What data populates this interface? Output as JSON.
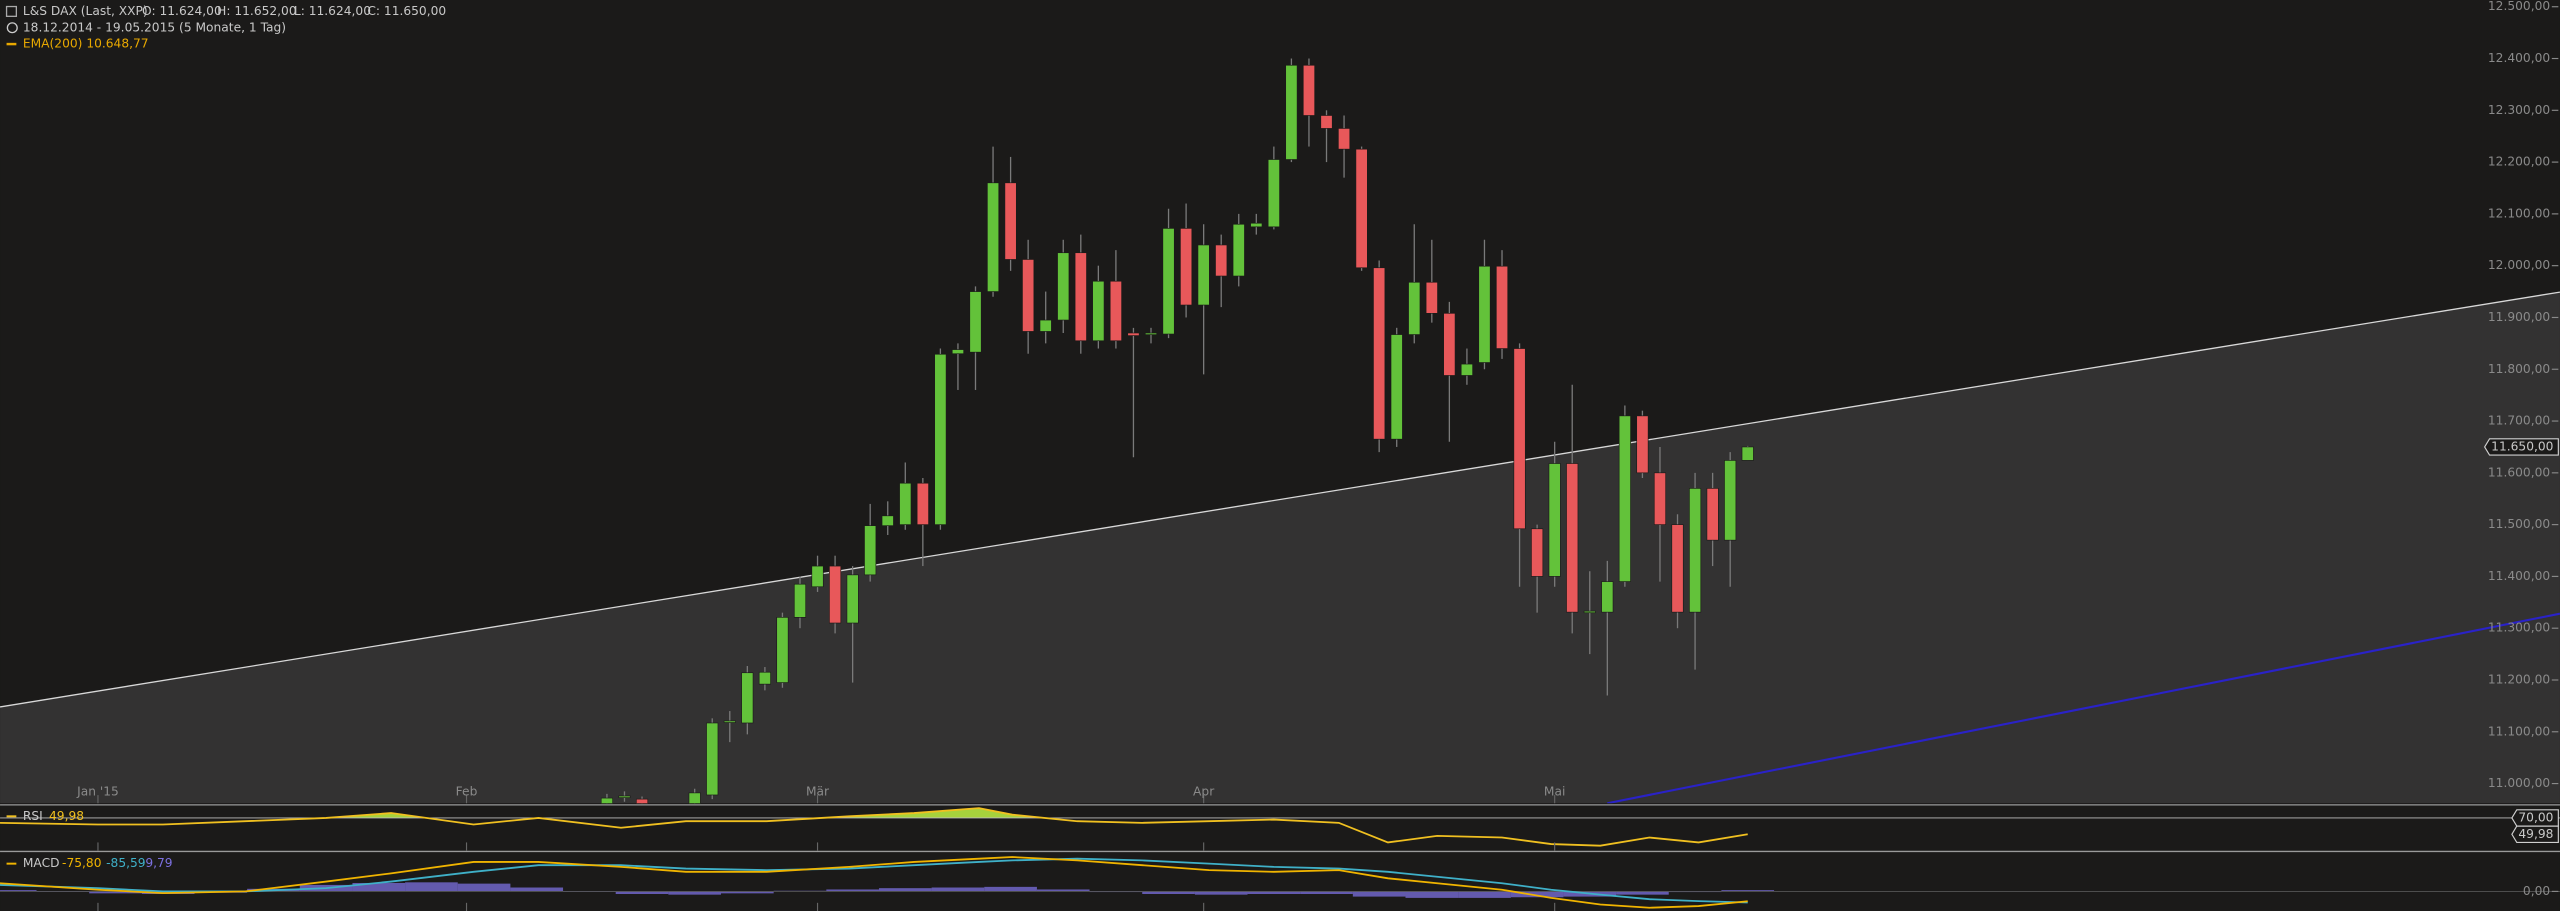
{
  "chart_data": [
    {
      "type": "candlestick",
      "title": "L&S DAX (Last, XXP)",
      "ohlc_labels": [
        "O: 11.624,00",
        "H: 11.652,00",
        "L: 11.624,00",
        "C: 11.650,00"
      ],
      "subtitle": "18.12.2014 - 19.05.2015 (5 Monate, 1 Tag)",
      "indicator_label": "EMA(200)  10.648,77",
      "indicator_color": "#e8a800",
      "x": [
        29,
        30,
        31,
        34,
        35,
        36,
        37,
        38,
        39,
        40,
        41,
        42,
        43,
        44,
        45,
        46,
        47,
        48,
        49,
        50,
        51,
        52,
        53,
        54,
        55,
        56,
        57,
        58,
        59,
        60,
        61,
        62,
        63,
        64,
        65,
        66,
        67,
        68,
        69,
        70,
        71,
        72,
        73,
        74,
        75,
        76,
        77,
        78,
        79,
        80,
        81,
        82,
        83,
        84,
        85,
        86,
        87,
        88,
        89,
        90,
        91,
        92,
        93,
        94
      ],
      "open": [
        10950,
        10974,
        10970,
        10940,
        10978,
        11118,
        11117,
        11192,
        11195,
        11321,
        11380,
        11420,
        11310,
        11403,
        11498,
        11500,
        11580,
        11500,
        11830,
        11833,
        11950,
        12160,
        12012,
        11873,
        11895,
        12025,
        11855,
        11970,
        11870,
        11867,
        11868,
        12072,
        11924,
        12040,
        11980,
        12075,
        12075,
        12205,
        12387,
        12290,
        12265,
        12225,
        11996,
        11665,
        11867,
        11968,
        11908,
        11788,
        11813,
        11999,
        11840,
        11492,
        11400,
        11618,
        11331,
        11331,
        11390,
        11710,
        11600,
        11500,
        11331,
        11570,
        11470,
        11624
      ],
      "high": [
        10980,
        10985,
        10975,
        10990,
        11126,
        11140,
        11227,
        11225,
        11330,
        11400,
        11440,
        11440,
        11420,
        11540,
        11545,
        11620,
        11590,
        11840,
        11850,
        11960,
        12230,
        12210,
        12050,
        11950,
        12050,
        12060,
        12000,
        12030,
        11880,
        11880,
        12110,
        12120,
        12080,
        12060,
        12100,
        12100,
        12230,
        12400,
        12400,
        12300,
        12290,
        12230,
        12010,
        11880,
        12080,
        12050,
        11930,
        11840,
        12050,
        12030,
        11850,
        11500,
        11660,
        11770,
        11410,
        11430,
        11730,
        11720,
        11650,
        11520,
        11600,
        11600,
        11640,
        11652
      ],
      "low": [
        10930,
        10965,
        10940,
        10920,
        10970,
        11080,
        11095,
        11180,
        11185,
        11300,
        11370,
        11290,
        11195,
        11390,
        11480,
        11490,
        11420,
        11490,
        11760,
        11760,
        11940,
        11990,
        11830,
        11850,
        11870,
        11830,
        11840,
        11840,
        11630,
        11850,
        11860,
        11900,
        11790,
        11920,
        11960,
        12060,
        12070,
        12200,
        12230,
        12200,
        12170,
        11990,
        11640,
        11650,
        11850,
        11890,
        11660,
        11770,
        11800,
        11820,
        11380,
        11330,
        11380,
        11290,
        11250,
        11170,
        11380,
        11590,
        11390,
        11300,
        11220,
        11420,
        11380,
        11624
      ],
      "close": [
        10972,
        10976,
        10955,
        10982,
        11117,
        11121,
        11214,
        11215,
        11321,
        11385,
        11420,
        11310,
        11403,
        11498,
        11517,
        11580,
        11500,
        11829,
        11838,
        11950,
        12160,
        12012,
        11873,
        11895,
        12025,
        11855,
        11970,
        11855,
        11865,
        11870,
        12072,
        11924,
        12040,
        11980,
        12080,
        12082,
        12205,
        12387,
        12290,
        12265,
        12225,
        11996,
        11665,
        11867,
        11968,
        11908,
        11788,
        11810,
        11999,
        11840,
        11492,
        11400,
        11618,
        11331,
        11333,
        11390,
        11710,
        11600,
        11500,
        11331,
        11570,
        11470,
        11624,
        11650
      ],
      "up_color": "#63c23a",
      "down_color": "#e8585a",
      "xlim": [
        -5.58,
        140.28
      ],
      "xticks": [
        {
          "value": 0,
          "label": "Jan '15"
        },
        {
          "value": 21,
          "label": "Feb"
        },
        {
          "value": 41,
          "label": "Mär"
        },
        {
          "value": 63,
          "label": "Apr"
        },
        {
          "value": 83,
          "label": "Mai"
        }
      ],
      "ylim": [
        10962,
        12513
      ],
      "yticks": [
        {
          "value": 11000,
          "label": "11.000,00"
        },
        {
          "value": 11100,
          "label": "11.100,00"
        },
        {
          "value": 11200,
          "label": "11.200,00"
        },
        {
          "value": 11300,
          "label": "11.300,00"
        },
        {
          "value": 11400,
          "label": "11.400,00"
        },
        {
          "value": 11500,
          "label": "11.500,00"
        },
        {
          "value": 11600,
          "label": "11.600,00"
        },
        {
          "value": 11700,
          "label": "11.700,00"
        },
        {
          "value": 11800,
          "label": "11.800,00"
        },
        {
          "value": 11900,
          "label": "11.900,00"
        },
        {
          "value": 12000,
          "label": "12.000,00"
        },
        {
          "value": 12100,
          "label": "12.100,00"
        },
        {
          "value": 12200,
          "label": "12.200,00"
        },
        {
          "value": 12300,
          "label": "12.300,00"
        },
        {
          "value": 12400,
          "label": "12.400,00"
        },
        {
          "value": 12500,
          "label": "12.500,00"
        }
      ],
      "last_price": {
        "value": 11650,
        "label": "11.650,00"
      },
      "trendlines": [
        {
          "x": [
            -5.58,
            140.28
          ],
          "y": [
            11148,
            11949
          ],
          "color": "#d8d8d8",
          "fill": "#333232"
        },
        {
          "x": [
            86,
            140.28
          ],
          "y": [
            10962,
            11328
          ],
          "color": "#2a22c8"
        }
      ]
    },
    {
      "type": "line",
      "title": "RSI",
      "value_label": "49,98",
      "x": [
        -5.6,
        0,
        3.7,
        8.4,
        13,
        16.7,
        21.4,
        25.1,
        29.8,
        33.5,
        38.1,
        42.8,
        46.5,
        50.2,
        52.1,
        55.8,
        59.5,
        63.3,
        67,
        70.7,
        73.5,
        76.3,
        80,
        82.8,
        85.6,
        88.4,
        91.2,
        94
      ],
      "values": [
        64,
        62,
        62,
        66,
        70,
        76,
        62,
        70,
        58,
        66,
        66,
        72,
        76,
        82,
        74,
        66,
        64,
        66,
        68,
        64,
        40,
        48,
        46,
        38,
        36,
        46,
        40,
        49.98
      ],
      "color": "#f0c020",
      "overbought_fill": "#a6d23c",
      "ylim": [
        30,
        84
      ],
      "yticks": [
        {
          "value": 70,
          "label": "70,00"
        }
      ],
      "last_label": {
        "value": 49.98,
        "label": "49,98"
      }
    },
    {
      "type": "macd",
      "title": "MACD",
      "x": [
        -5.6,
        0,
        3.7,
        8.4,
        13,
        16.7,
        21.4,
        25.1,
        29.8,
        33.5,
        38.1,
        42.8,
        46.5,
        50.2,
        52.1,
        55.8,
        59.5,
        63.3,
        67,
        70.7,
        73.5,
        76.3,
        80,
        82.8,
        85.6,
        88.4,
        91.2,
        94
      ],
      "series": [
        {
          "color": "#f0b400",
          "value_label": "-75,80",
          "values": [
            63,
            13,
            -13,
            0,
            76,
            139,
            227,
            227,
            189,
            151,
            151,
            189,
            227,
            252,
            265,
            239,
            202,
            164,
            151,
            164,
            101,
            63,
            13,
            -50,
            -101,
            -126,
            -113,
            -75.8
          ]
        },
        {
          "color": "#3fb0c8",
          "value_label": "-85,59",
          "values": [
            50,
            25,
            0,
            0,
            25,
            76,
            151,
            202,
            202,
            176,
            164,
            176,
            202,
            227,
            239,
            252,
            239,
            214,
            189,
            176,
            151,
            113,
            63,
            13,
            -25,
            -60,
            -75,
            -85.59
          ]
        }
      ],
      "histogram": {
        "color": "#7c70e0",
        "value_label": "9,79",
        "x": [
          -5,
          -2,
          1,
          4,
          7,
          10,
          13,
          16,
          19,
          22,
          25,
          28,
          31,
          34,
          37,
          40,
          43,
          46,
          49,
          52,
          55,
          58,
          61,
          64,
          67,
          70,
          73,
          76,
          79,
          82,
          85,
          88,
          91,
          94
        ],
        "values": [
          10,
          0,
          -15,
          -20,
          -10,
          20,
          50,
          65,
          70,
          60,
          30,
          0,
          -20,
          -25,
          -15,
          5,
          15,
          25,
          30,
          35,
          15,
          -5,
          -20,
          -25,
          -20,
          -20,
          -40,
          -50,
          -50,
          -45,
          -40,
          -25,
          -5,
          9.79
        ]
      },
      "ylim": [
        -151,
        302
      ],
      "yticks": [
        {
          "value": 0,
          "label": "0,00"
        }
      ]
    }
  ]
}
